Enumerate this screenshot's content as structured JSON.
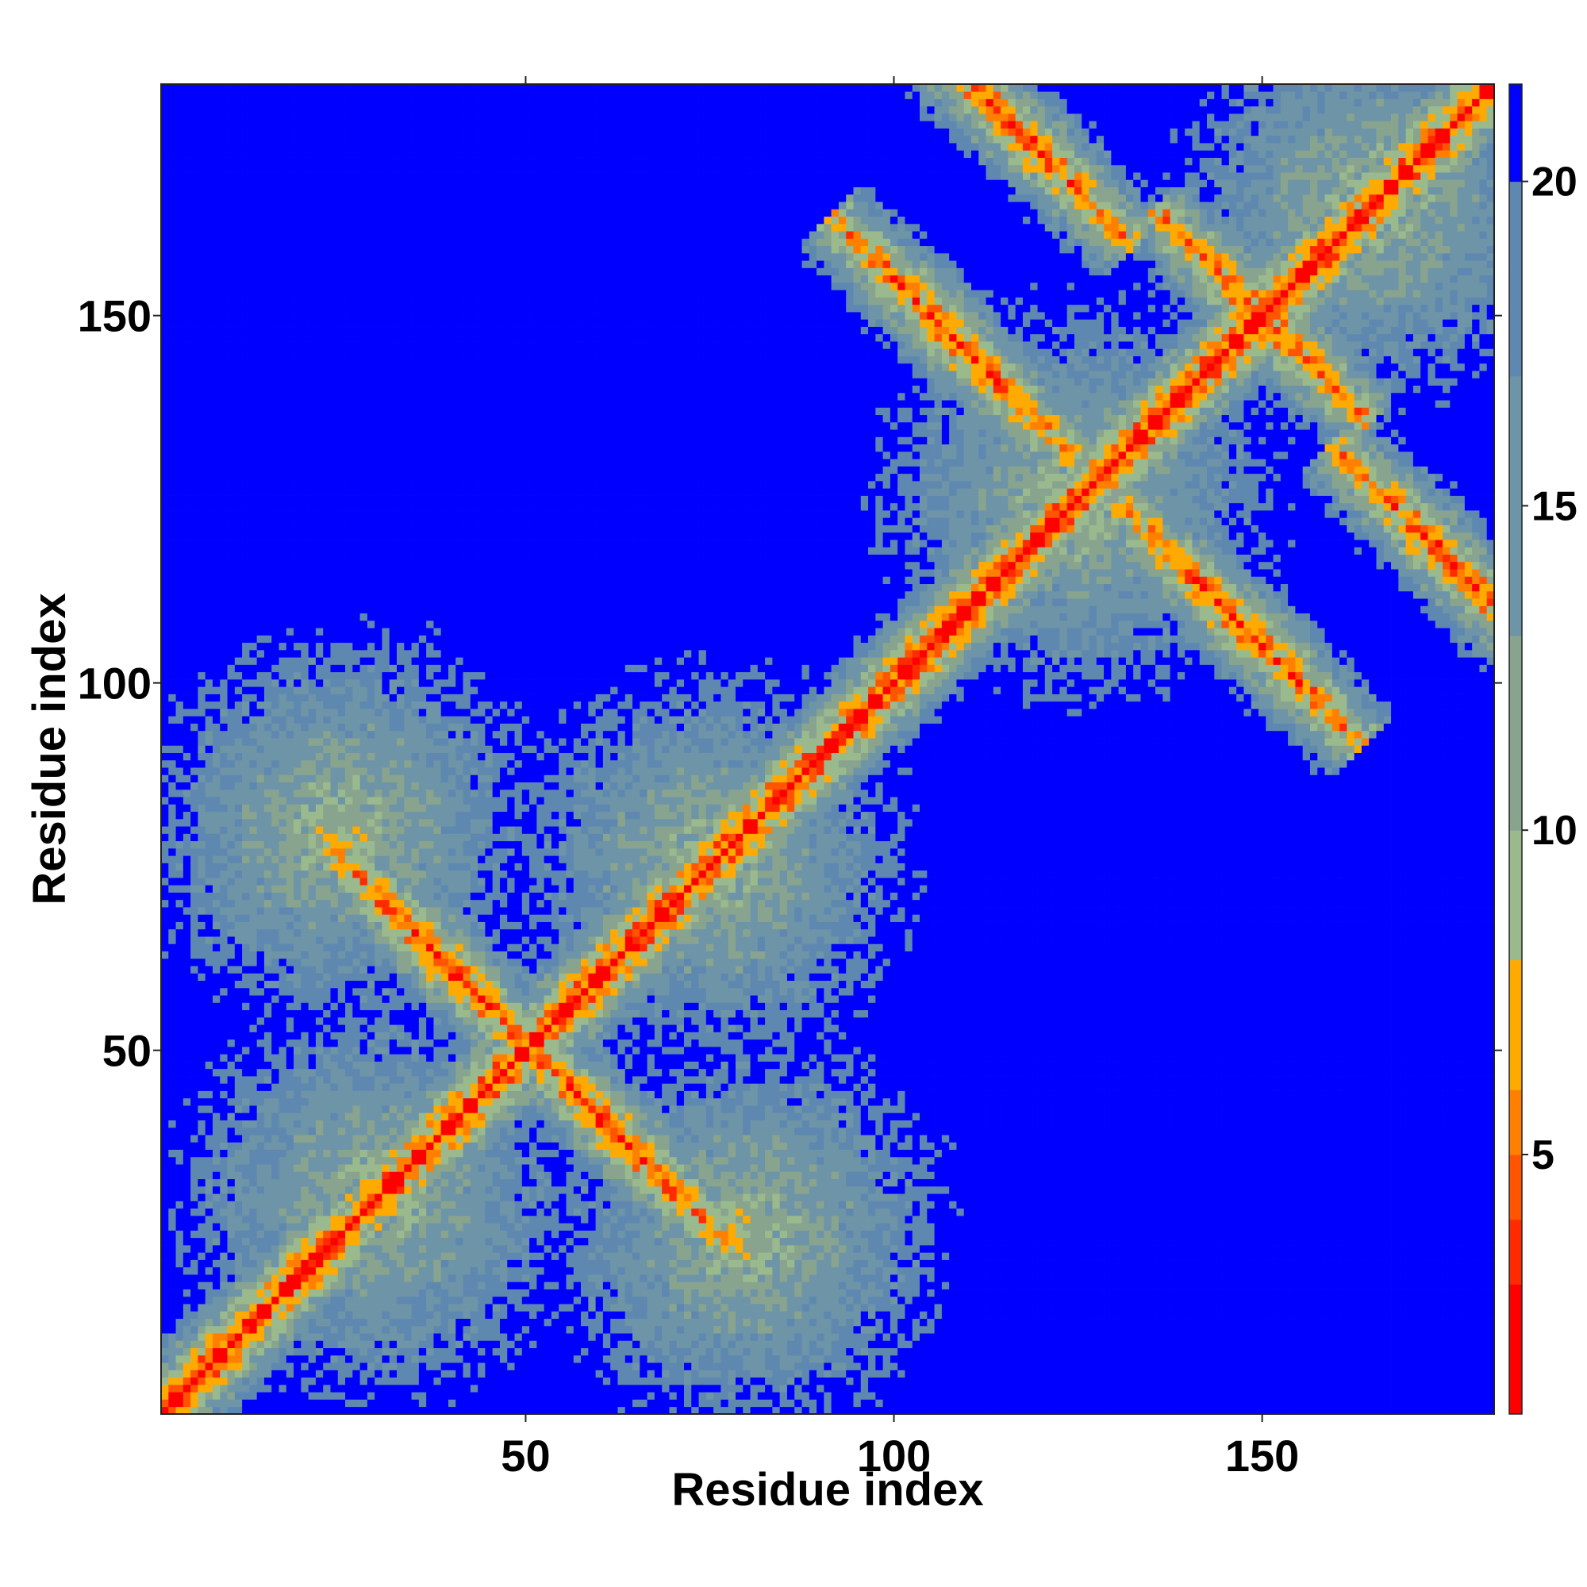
{
  "chart_data": {
    "type": "heatmap",
    "title": "",
    "xlabel": "Residue index",
    "ylabel": "Residue index",
    "n_residues": 181,
    "xlim": [
      1,
      181
    ],
    "ylim": [
      1,
      181
    ],
    "xticks": [
      50,
      100,
      150
    ],
    "yticks": [
      50,
      100,
      150
    ],
    "colorbar": {
      "ticks": [
        5,
        10,
        15,
        20
      ],
      "range": [
        1,
        21.5
      ],
      "colors": [
        "#ff0000",
        "#ff2a00",
        "#ff5500",
        "#ff8000",
        "#ffaa00",
        "#9aba8e",
        "#88a48f",
        "#6e94a8",
        "#5f88b0",
        "#0000ff"
      ],
      "bounds": [
        1,
        3,
        4,
        5,
        6,
        8,
        10,
        13,
        17,
        20,
        21.5
      ]
    },
    "low_value_color": "#ff0000",
    "high_value_color": "#0000ff",
    "contact_structure": {
      "diagonal": "distance ~0 along i=j",
      "antiparallel_bands": [
        [
          40,
          61
        ],
        [
          108,
          147
        ],
        [
          152,
          148
        ],
        [
          116,
          176
        ]
      ],
      "parallel_band_offset": 3
    }
  }
}
